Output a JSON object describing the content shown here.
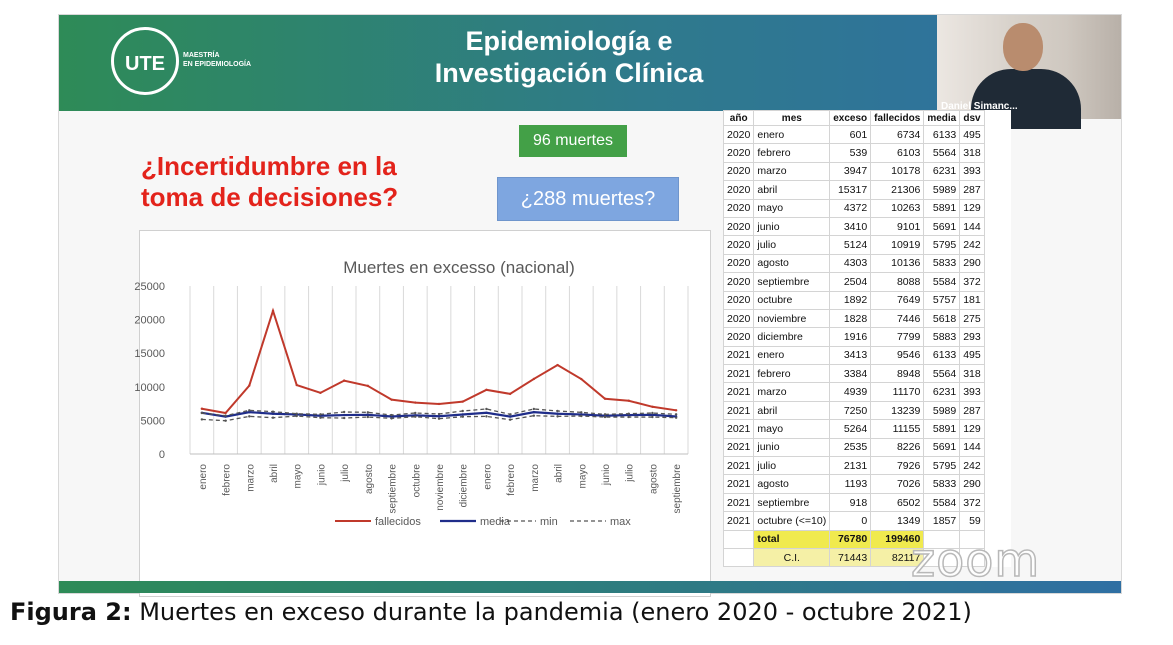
{
  "header": {
    "logo_text": "UTE",
    "logo_sub": [
      "MAESTRÍA",
      "EN EPIDEMIOLOGÍA"
    ],
    "title_line1": "Epidemiología e",
    "title_line2": "Investigación Clínica"
  },
  "webcam": {
    "name": "Daniel Simanc..."
  },
  "question": {
    "line1": "¿Incertidumbre en la",
    "line2": "toma de decisiones?"
  },
  "badges": {
    "deaths_96": "96 muertes",
    "deaths_288": "¿288 muertes?"
  },
  "watermark": "zoom",
  "caption": {
    "label": "Figura 2:",
    "text": "Muertes en exceso durante la pandemia (enero 2020 - octubre 2021)"
  },
  "colors": {
    "fallecidos": "#c0392b",
    "media": "#1f2d8a",
    "minmax": "#555555",
    "total_bg": "#f0ea4e"
  },
  "chart_data": {
    "type": "line",
    "title": "Muertes en excesso (nacional)",
    "categories": [
      "enero",
      "febrero",
      "marzo",
      "abril",
      "mayo",
      "junio",
      "julio",
      "agosto",
      "septiembre",
      "octubre",
      "noviembre",
      "diciembre",
      "enero",
      "febrero",
      "marzo",
      "abril",
      "mayo",
      "junio",
      "julio",
      "agosto",
      "septiembre"
    ],
    "ylim": [
      0,
      25000
    ],
    "yticks": [
      "0",
      "5000",
      "10000",
      "15000",
      "20000",
      "25000"
    ],
    "grid": "vertical",
    "legend_position": "bottom",
    "series": [
      {
        "name": "fallecidos",
        "style": "solid",
        "values": [
          6734,
          6103,
          10178,
          21306,
          10263,
          9101,
          10919,
          10136,
          8088,
          7649,
          7446,
          7799,
          9546,
          8948,
          11170,
          13239,
          11155,
          8226,
          7926,
          7026,
          6502
        ]
      },
      {
        "name": "media",
        "style": "solid",
        "values": [
          6133,
          5564,
          6231,
          5989,
          5891,
          5691,
          5795,
          5833,
          5584,
          5757,
          5618,
          5883,
          6133,
          5564,
          6231,
          5989,
          5891,
          5691,
          5795,
          5833,
          5584
        ]
      },
      {
        "name": "min",
        "style": "dashed",
        "values": [
          5150,
          4950,
          5600,
          5400,
          5650,
          5400,
          5350,
          5500,
          5300,
          5550,
          5250,
          5550,
          5600,
          5100,
          5700,
          5600,
          5650,
          5500,
          5500,
          5500,
          5400
        ]
      },
      {
        "name": "max",
        "style": "dashed",
        "values": [
          6100,
          5700,
          6500,
          6300,
          6000,
          5900,
          6250,
          6200,
          5800,
          6100,
          5950,
          6400,
          6700,
          5900,
          6700,
          6400,
          6200,
          5900,
          6000,
          6100,
          5900
        ]
      }
    ]
  },
  "table": {
    "headers": [
      "año",
      "mes",
      "exceso",
      "fallecidos",
      "media",
      "dsv"
    ],
    "rows": [
      [
        "2020",
        "enero",
        "601",
        "6734",
        "6133",
        "495"
      ],
      [
        "2020",
        "febrero",
        "539",
        "6103",
        "5564",
        "318"
      ],
      [
        "2020",
        "marzo",
        "3947",
        "10178",
        "6231",
        "393"
      ],
      [
        "2020",
        "abril",
        "15317",
        "21306",
        "5989",
        "287"
      ],
      [
        "2020",
        "mayo",
        "4372",
        "10263",
        "5891",
        "129"
      ],
      [
        "2020",
        "junio",
        "3410",
        "9101",
        "5691",
        "144"
      ],
      [
        "2020",
        "julio",
        "5124",
        "10919",
        "5795",
        "242"
      ],
      [
        "2020",
        "agosto",
        "4303",
        "10136",
        "5833",
        "290"
      ],
      [
        "2020",
        "septiembre",
        "2504",
        "8088",
        "5584",
        "372"
      ],
      [
        "2020",
        "octubre",
        "1892",
        "7649",
        "5757",
        "181"
      ],
      [
        "2020",
        "noviembre",
        "1828",
        "7446",
        "5618",
        "275"
      ],
      [
        "2020",
        "diciembre",
        "1916",
        "7799",
        "5883",
        "293"
      ],
      [
        "2021",
        "enero",
        "3413",
        "9546",
        "6133",
        "495"
      ],
      [
        "2021",
        "febrero",
        "3384",
        "8948",
        "5564",
        "318"
      ],
      [
        "2021",
        "marzo",
        "4939",
        "11170",
        "6231",
        "393"
      ],
      [
        "2021",
        "abril",
        "7250",
        "13239",
        "5989",
        "287"
      ],
      [
        "2021",
        "mayo",
        "5264",
        "11155",
        "5891",
        "129"
      ],
      [
        "2021",
        "junio",
        "2535",
        "8226",
        "5691",
        "144"
      ],
      [
        "2021",
        "julio",
        "2131",
        "7926",
        "5795",
        "242"
      ],
      [
        "2021",
        "agosto",
        "1193",
        "7026",
        "5833",
        "290"
      ],
      [
        "2021",
        "septiembre",
        "918",
        "6502",
        "5584",
        "372"
      ],
      [
        "2021",
        "octubre (<=10)",
        "0",
        "1349",
        "1857",
        "59"
      ]
    ],
    "total": {
      "label": "total",
      "exceso": "76780",
      "fallecidos": "199460"
    },
    "ci": {
      "label": "C.I.",
      "low": "71443",
      "high": "82117"
    }
  }
}
